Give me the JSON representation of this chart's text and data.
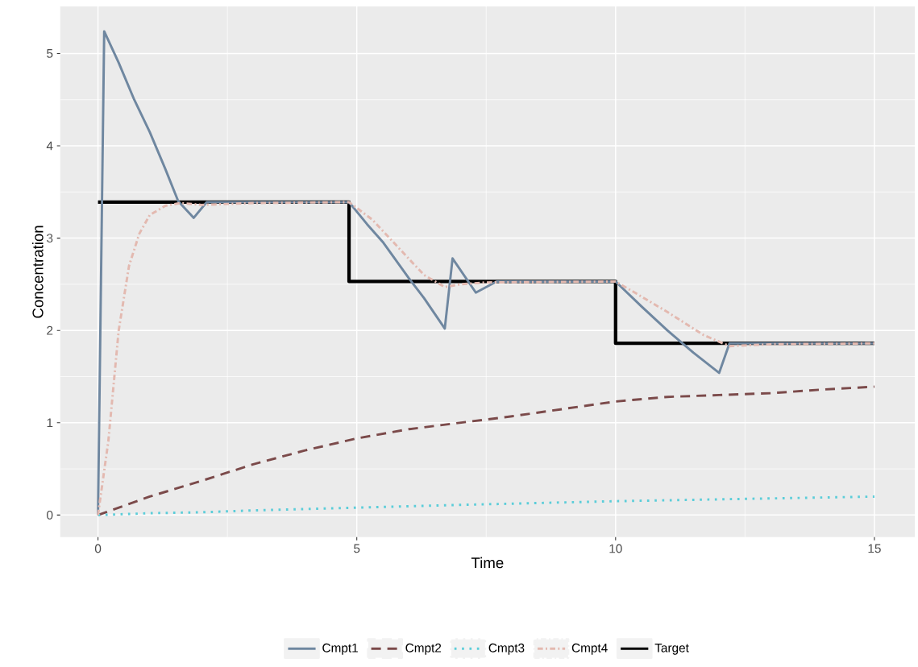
{
  "chart_data": {
    "type": "line",
    "xlabel": "Time",
    "ylabel": "Concentration",
    "xlim": [
      -0.73,
      15.78
    ],
    "ylim": [
      -0.24,
      5.51
    ],
    "xticks": [
      0,
      5,
      10,
      15
    ],
    "yticks": [
      0,
      1,
      2,
      3,
      4,
      5
    ],
    "grid": true,
    "legend": "bottom",
    "marker": "none",
    "series": [
      {
        "name": "Cmpt1",
        "color": "#6f87a0",
        "line_style": "solid",
        "x": [
          0,
          0.12,
          0.4,
          0.7,
          1.0,
          1.3,
          1.55,
          1.85,
          2.1,
          3,
          4.85,
          5.2,
          5.5,
          6.0,
          6.3,
          6.7,
          6.85,
          7.3,
          7.7,
          9,
          10,
          10.5,
          11,
          11.5,
          12.0,
          12.2,
          13,
          15
        ],
        "values": [
          0,
          5.24,
          4.9,
          4.5,
          4.15,
          3.75,
          3.4,
          3.22,
          3.39,
          3.39,
          3.39,
          3.15,
          2.96,
          2.57,
          2.35,
          2.02,
          2.78,
          2.41,
          2.53,
          2.53,
          2.53,
          2.26,
          2.0,
          1.76,
          1.54,
          1.86,
          1.86,
          1.86
        ]
      },
      {
        "name": "Cmpt2",
        "color": "#7b4a4a",
        "line_style": "dashed",
        "x": [
          0,
          1,
          2,
          3,
          4,
          5,
          6,
          7,
          8,
          9,
          10,
          11,
          12,
          13,
          14,
          15
        ],
        "values": [
          0,
          0.2,
          0.37,
          0.55,
          0.7,
          0.83,
          0.93,
          1.0,
          1.07,
          1.15,
          1.23,
          1.28,
          1.3,
          1.32,
          1.36,
          1.39
        ]
      },
      {
        "name": "Cmpt3",
        "color": "#5bcdd9",
        "line_style": "dotted",
        "x": [
          0,
          1,
          2,
          3,
          5,
          7,
          10,
          12,
          15
        ],
        "values": [
          0,
          0.02,
          0.03,
          0.05,
          0.08,
          0.11,
          0.15,
          0.17,
          0.2
        ]
      },
      {
        "name": "Cmpt4",
        "color": "#e3b9b0",
        "line_style": "dashdot",
        "x": [
          0,
          0.2,
          0.4,
          0.6,
          0.8,
          1.0,
          1.3,
          1.6,
          2,
          3,
          4.85,
          5.3,
          5.8,
          6.3,
          6.7,
          7,
          7.5,
          10,
          10.4,
          11,
          11.7,
          12.2,
          13,
          15
        ],
        "values": [
          0,
          0.8,
          2.0,
          2.7,
          3.05,
          3.25,
          3.35,
          3.38,
          3.36,
          3.38,
          3.39,
          3.2,
          2.9,
          2.6,
          2.47,
          2.5,
          2.52,
          2.53,
          2.4,
          2.2,
          1.95,
          1.83,
          1.85,
          1.86
        ]
      },
      {
        "name": "Target",
        "color": "#000000",
        "line_style": "solid",
        "x": [
          0,
          4.85,
          4.85,
          10,
          10,
          15
        ],
        "values": [
          3.39,
          3.39,
          2.53,
          2.53,
          1.86,
          1.86
        ]
      }
    ]
  }
}
